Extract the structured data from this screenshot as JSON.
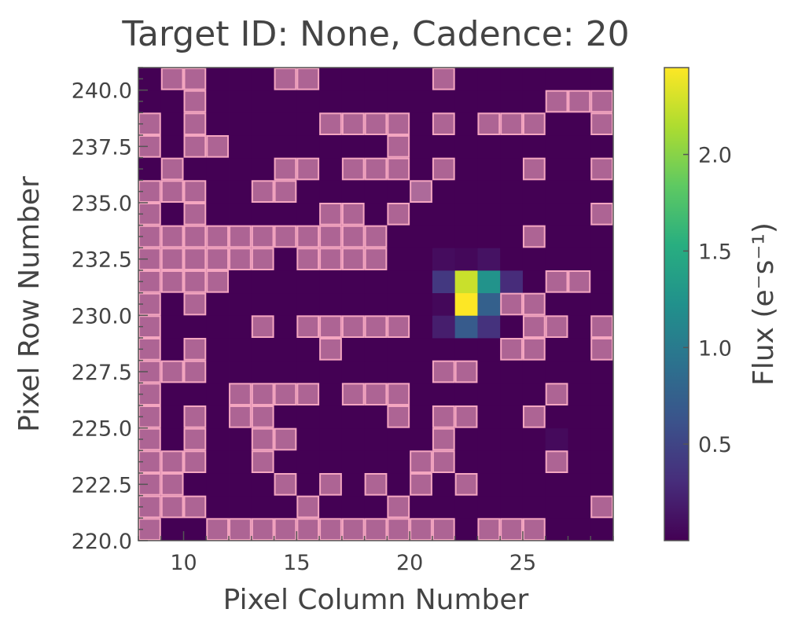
{
  "chart_data": {
    "type": "heatmap",
    "title": "Target ID: None, Cadence: 20",
    "xlabel": "Pixel Column Number",
    "ylabel": "Pixel Row Number",
    "colorbar_label": "Flux (e⁻s⁻¹)",
    "colormap": "viridis",
    "overlay_color": "#f4a6c0",
    "x_range": [
      8,
      29
    ],
    "y_range": [
      220,
      241
    ],
    "column_start": 8,
    "row_start": 220,
    "x_ticks": [
      10,
      15,
      20,
      25
    ],
    "x_tick_labels": [
      "10",
      "15",
      "20",
      "25"
    ],
    "y_ticks": [
      220.0,
      222.5,
      225.0,
      227.5,
      230.0,
      232.5,
      235.0,
      237.5,
      240.0
    ],
    "y_tick_labels": [
      "220.0",
      "222.5",
      "225.0",
      "227.5",
      "230.0",
      "232.5",
      "235.0",
      "237.5",
      "240.0"
    ],
    "color_range": [
      0.0,
      2.45
    ],
    "colorbar_ticks": [
      0.5,
      1.0,
      1.5,
      2.0
    ],
    "colorbar_tick_labels": [
      "0.5",
      "1.0",
      "1.5",
      "2.0"
    ],
    "aperture_mask": [
      "100111111111110111000",
      "111000010001000000001",
      "110000101010101000000",
      "111001000000110000100",
      "101001100000010000000",
      "101011000001011001000",
      "100011110111000000100",
      "111000000000011000000",
      "101000001000000011001",
      "100001011111000001101",
      "101000000000000011000",
      "111100000000000000110",
      "111111011110000000000",
      "111111111110000001000",
      "101000001101000000001",
      "111001100000100000000",
      "010000110111010001001",
      "101100000001000000000",
      "101000001111010111001",
      "001000000000000000111",
      "011000110000010000000"
    ],
    "flux_values": [
      {
        "col": 21,
        "row": 229,
        "flux": 0.2
      },
      {
        "col": 22,
        "row": 229,
        "flux": 0.7
      },
      {
        "col": 23,
        "row": 229,
        "flux": 0.35
      },
      {
        "col": 21,
        "row": 230,
        "flux": 0.05
      },
      {
        "col": 22,
        "row": 230,
        "flux": 2.45
      },
      {
        "col": 23,
        "row": 230,
        "flux": 0.75
      },
      {
        "col": 21,
        "row": 231,
        "flux": 0.4
      },
      {
        "col": 22,
        "row": 231,
        "flux": 2.25
      },
      {
        "col": 23,
        "row": 231,
        "flux": 1.25
      },
      {
        "col": 24,
        "row": 231,
        "flux": 0.3
      },
      {
        "col": 21,
        "row": 232,
        "flux": 0.08
      },
      {
        "col": 22,
        "row": 232,
        "flux": 0.05
      },
      {
        "col": 23,
        "row": 232,
        "flux": 0.12
      },
      {
        "col": 20,
        "row": 235,
        "flux": 0.1
      },
      {
        "col": 26,
        "row": 224,
        "flux": 0.06
      }
    ],
    "grid": false
  }
}
